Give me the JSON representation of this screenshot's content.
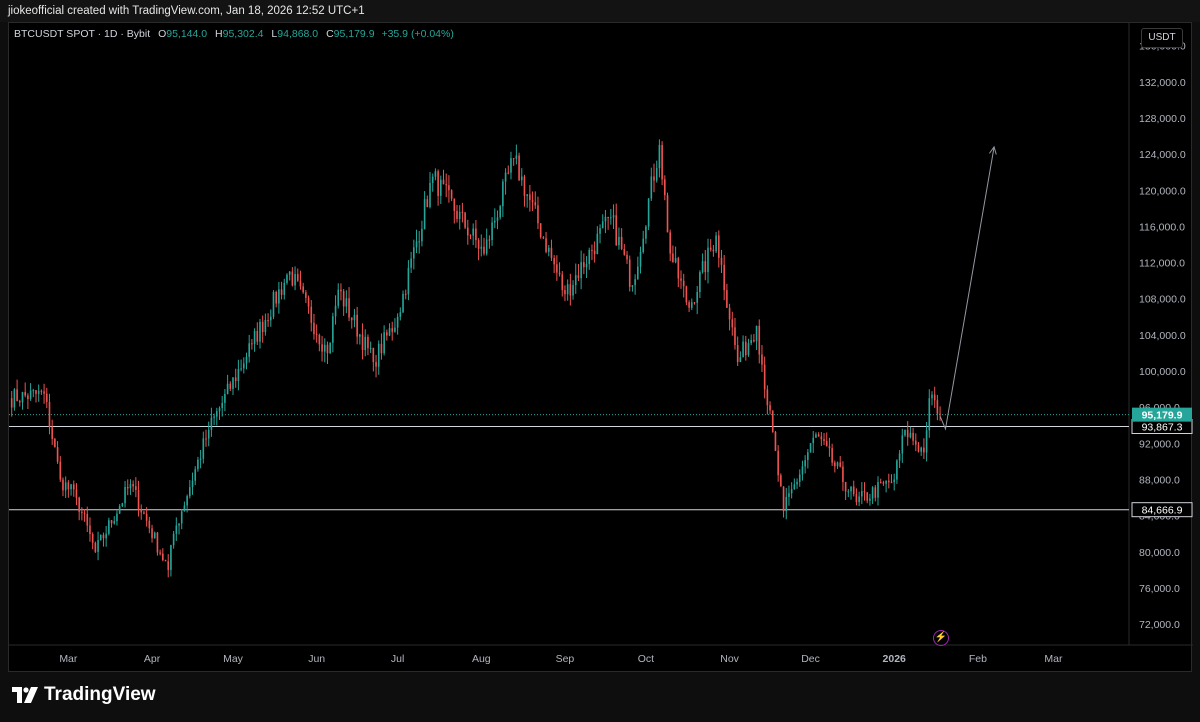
{
  "header": {
    "text": "jiokeofficial created with TradingView.com, Jan 18, 2026 12:52 UTC+1"
  },
  "legend": {
    "symbol": "BTCUSDT SPOT · 1D · Bybit",
    "o_label": "O",
    "o_value": "95,144.0",
    "h_label": "H",
    "h_value": "95,302.4",
    "l_label": "L",
    "l_value": "94,868.0",
    "c_label": "C",
    "c_value": "95,179.9",
    "change": "+35.9 (+0.04%)"
  },
  "unit_button": "USDT",
  "footer": {
    "brand": "TradingView",
    "logo_icon": "tradingview-logo-icon"
  },
  "colors": {
    "up": "#26a69a",
    "down": "#ef5350",
    "background": "#000000",
    "line": "#d1d4dc"
  },
  "chart_data": {
    "type": "candlestick",
    "symbol": "BTCUSDT",
    "timeframe": "1D",
    "exchange": "Bybit",
    "y_axis": {
      "ticks": [
        72000,
        76000,
        80000,
        84000,
        88000,
        92000,
        96000,
        100000,
        104000,
        108000,
        112000,
        116000,
        120000,
        124000,
        128000,
        132000,
        136000
      ],
      "tick_labels": [
        "72,000.0",
        "76,000.0",
        "80,000.0",
        "84,000.0",
        "88,000.0",
        "92,000.0",
        "96,000.0",
        "100,000.0",
        "104,000.0",
        "108,000.0",
        "112,000.0",
        "116,000.0",
        "120,000.0",
        "124,000.0",
        "128,000.0",
        "132,000.0",
        "136,000.0"
      ],
      "range": [
        69700,
        138500
      ]
    },
    "x_axis": {
      "labels": [
        "Mar",
        "Apr",
        "May",
        "Jun",
        "Jul",
        "Aug",
        "Sep",
        "Oct",
        "Nov",
        "Dec",
        "2026",
        "Feb",
        "Mar"
      ],
      "label_dates": [
        "2025-03-01",
        "2025-04-01",
        "2025-05-01",
        "2025-06-01",
        "2025-07-01",
        "2025-08-01",
        "2025-09-01",
        "2025-10-01",
        "2025-11-01",
        "2025-12-01",
        "2026-01-01",
        "2026-02-01",
        "2026-03-01"
      ],
      "range": [
        "2025-02-07",
        "2026-03-29"
      ]
    },
    "current_price": {
      "value": 95179.9,
      "label": "95,179.9"
    },
    "horizontal_lines": [
      {
        "value": 93867.3,
        "label": "93,867.3"
      },
      {
        "value": 84666.9,
        "label": "84,666.9"
      }
    ],
    "projection_arrow": [
      {
        "date": "2026-01-18",
        "value": 95000
      },
      {
        "date": "2026-01-20",
        "value": 93600
      },
      {
        "date": "2026-02-07",
        "value": 124800
      }
    ],
    "key_closes": [
      {
        "date": "2025-02-07",
        "value": 97000
      },
      {
        "date": "2025-02-20",
        "value": 97500
      },
      {
        "date": "2025-02-26",
        "value": 88000
      },
      {
        "date": "2025-03-04",
        "value": 86000
      },
      {
        "date": "2025-03-11",
        "value": 80000
      },
      {
        "date": "2025-03-24",
        "value": 87500
      },
      {
        "date": "2025-04-07",
        "value": 78000
      },
      {
        "date": "2025-04-09",
        "value": 82000
      },
      {
        "date": "2025-04-22",
        "value": 93500
      },
      {
        "date": "2025-05-08",
        "value": 103000
      },
      {
        "date": "2025-05-22",
        "value": 111000
      },
      {
        "date": "2025-06-05",
        "value": 102000
      },
      {
        "date": "2025-06-09",
        "value": 109000
      },
      {
        "date": "2025-06-22",
        "value": 101000
      },
      {
        "date": "2025-07-01",
        "value": 106000
      },
      {
        "date": "2025-07-14",
        "value": 121500
      },
      {
        "date": "2025-08-02",
        "value": 113000
      },
      {
        "date": "2025-08-13",
        "value": 123500
      },
      {
        "date": "2025-09-01",
        "value": 108500
      },
      {
        "date": "2025-09-18",
        "value": 117000
      },
      {
        "date": "2025-09-26",
        "value": 109500
      },
      {
        "date": "2025-10-06",
        "value": 125000
      },
      {
        "date": "2025-10-10",
        "value": 113000
      },
      {
        "date": "2025-10-17",
        "value": 107000
      },
      {
        "date": "2025-10-27",
        "value": 115000
      },
      {
        "date": "2025-11-04",
        "value": 101000
      },
      {
        "date": "2025-11-11",
        "value": 105000
      },
      {
        "date": "2025-11-21",
        "value": 84500
      },
      {
        "date": "2025-12-03",
        "value": 93000
      },
      {
        "date": "2025-12-18",
        "value": 85500
      },
      {
        "date": "2026-01-01",
        "value": 88000
      },
      {
        "date": "2026-01-05",
        "value": 93500
      },
      {
        "date": "2026-01-12",
        "value": 91000
      },
      {
        "date": "2026-01-14",
        "value": 97000
      },
      {
        "date": "2026-01-18",
        "value": 95179.9
      }
    ]
  }
}
